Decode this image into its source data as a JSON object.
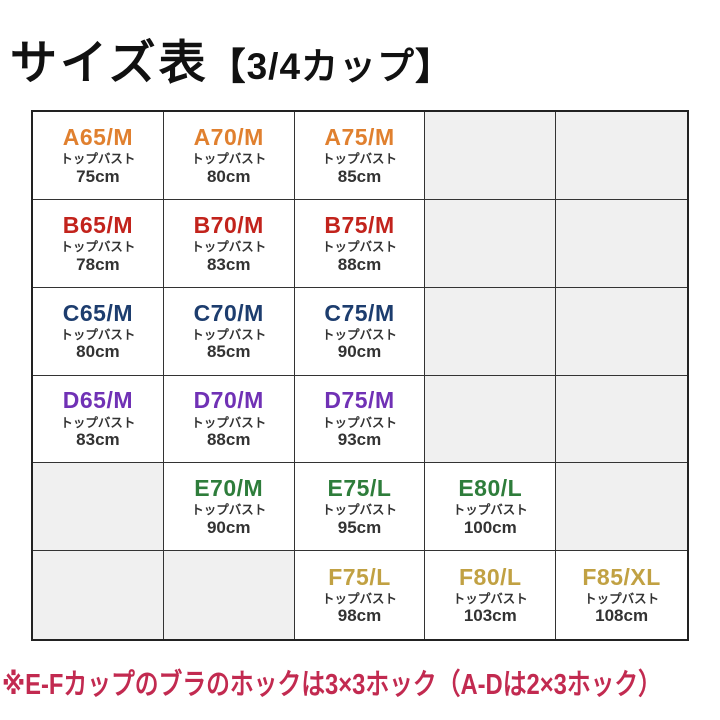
{
  "title": {
    "main": "サイズ表",
    "bracket": "【3/4カップ】"
  },
  "table": {
    "columns": 5,
    "rows": [
      {
        "cup": "A",
        "color": "#e0802f",
        "cells": [
          {
            "size": "A65/M",
            "bust_label": "トップバスト",
            "bust": "75cm"
          },
          {
            "size": "A70/M",
            "bust_label": "トップバスト",
            "bust": "80cm"
          },
          {
            "size": "A75/M",
            "bust_label": "トップバスト",
            "bust": "85cm"
          },
          null,
          null
        ]
      },
      {
        "cup": "B",
        "color": "#c2231c",
        "cells": [
          {
            "size": "B65/M",
            "bust_label": "トップバスト",
            "bust": "78cm"
          },
          {
            "size": "B70/M",
            "bust_label": "トップバスト",
            "bust": "83cm"
          },
          {
            "size": "B75/M",
            "bust_label": "トップバスト",
            "bust": "88cm"
          },
          null,
          null
        ]
      },
      {
        "cup": "C",
        "color": "#1d3d6e",
        "cells": [
          {
            "size": "C65/M",
            "bust_label": "トップバスト",
            "bust": "80cm"
          },
          {
            "size": "C70/M",
            "bust_label": "トップバスト",
            "bust": "85cm"
          },
          {
            "size": "C75/M",
            "bust_label": "トップバスト",
            "bust": "90cm"
          },
          null,
          null
        ]
      },
      {
        "cup": "D",
        "color": "#7031b5",
        "cells": [
          {
            "size": "D65/M",
            "bust_label": "トップバスト",
            "bust": "83cm"
          },
          {
            "size": "D70/M",
            "bust_label": "トップバスト",
            "bust": "88cm"
          },
          {
            "size": "D75/M",
            "bust_label": "トップバスト",
            "bust": "93cm"
          },
          null,
          null
        ]
      },
      {
        "cup": "E",
        "color": "#2e7d3b",
        "cells": [
          null,
          {
            "size": "E70/M",
            "bust_label": "トップバスト",
            "bust": "90cm"
          },
          {
            "size": "E75/L",
            "bust_label": "トップバスト",
            "bust": "95cm"
          },
          {
            "size": "E80/L",
            "bust_label": "トップバスト",
            "bust": "100cm"
          },
          null
        ]
      },
      {
        "cup": "F",
        "color": "#c1a143",
        "cells": [
          null,
          null,
          {
            "size": "F75/L",
            "bust_label": "トップバスト",
            "bust": "98cm"
          },
          {
            "size": "F80/L",
            "bust_label": "トップバスト",
            "bust": "103cm"
          },
          {
            "size": "F85/XL",
            "bust_label": "トップバスト",
            "bust": "108cm"
          }
        ]
      }
    ]
  },
  "footnote": "※E-Fカップのブラのホックは3×3ホック（A-Dは2×3ホック）",
  "colors": {
    "title": "#111111",
    "body_text": "#333333",
    "grid_border": "#333333",
    "empty_cell_bg": "#f0f0f0",
    "footnote": "#c22a50",
    "cup_a": "#e0802f",
    "cup_b": "#c2231c",
    "cup_c": "#1d3d6e",
    "cup_d": "#7031b5",
    "cup_e": "#2e7d3b",
    "cup_f": "#c1a143"
  }
}
